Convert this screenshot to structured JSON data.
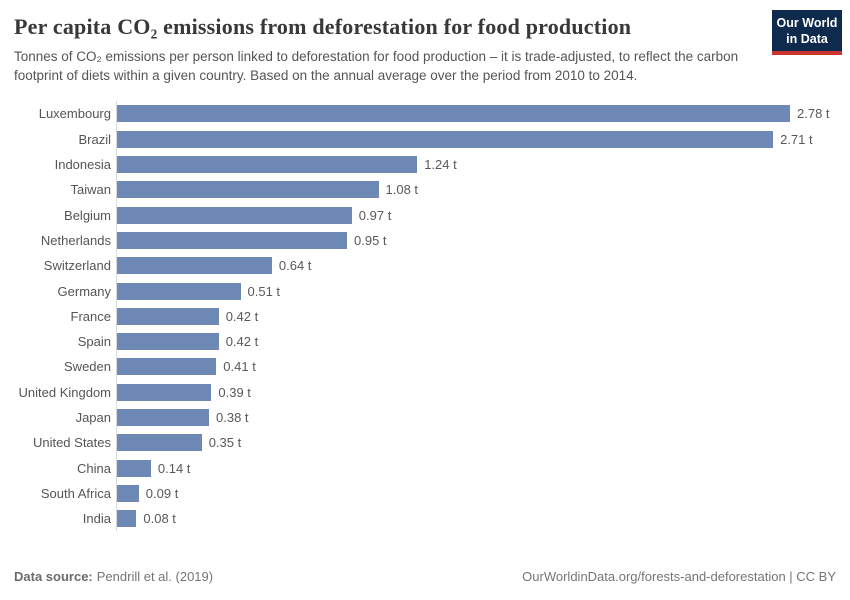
{
  "header": {
    "title": "Per capita CO₂ emissions from deforestation for food production",
    "subtitle": "Tonnes of CO₂ emissions per person linked to deforestation for food production – it is trade-adjusted, to reflect the carbon footprint of diets within a given country. Based on the annual average over the period from 2010 to 2014.",
    "logo": {
      "line1": "Our World",
      "line2": "in Data"
    }
  },
  "chart_data": {
    "type": "bar",
    "orientation": "horizontal",
    "title": "Per capita CO₂ emissions from deforestation for food production",
    "categories": [
      "Luxembourg",
      "Brazil",
      "Indonesia",
      "Taiwan",
      "Belgium",
      "Netherlands",
      "Switzerland",
      "Germany",
      "France",
      "Spain",
      "Sweden",
      "United Kingdom",
      "Japan",
      "United States",
      "China",
      "South Africa",
      "India"
    ],
    "values": [
      2.78,
      2.71,
      1.24,
      1.08,
      0.97,
      0.95,
      0.64,
      0.51,
      0.42,
      0.42,
      0.41,
      0.39,
      0.38,
      0.35,
      0.14,
      0.09,
      0.08
    ],
    "value_labels": [
      "2.78 t",
      "2.71 t",
      "1.24 t",
      "1.08 t",
      "0.97 t",
      "0.95 t",
      "0.64 t",
      "0.51 t",
      "0.42 t",
      "0.42 t",
      "0.41 t",
      "0.39 t",
      "0.38 t",
      "0.35 t",
      "0.14 t",
      "0.09 t",
      "0.08 t"
    ],
    "unit": "t",
    "xlabel": "",
    "ylabel": "",
    "xlim": [
      0,
      2.78
    ],
    "grid": false,
    "legend": "none",
    "bar_color": "#6e89b5",
    "axis_line_color": "#d9d9d9"
  },
  "footer": {
    "source_label": "Data source:",
    "source_text": "Pendrill et al. (2019)",
    "right_text": "OurWorldinData.org/forests-and-deforestation | CC BY"
  },
  "colors": {
    "logo_bg": "#0e2a4d",
    "logo_accent": "#cc3431",
    "title_text": "#383838",
    "body_text": "#555555"
  }
}
